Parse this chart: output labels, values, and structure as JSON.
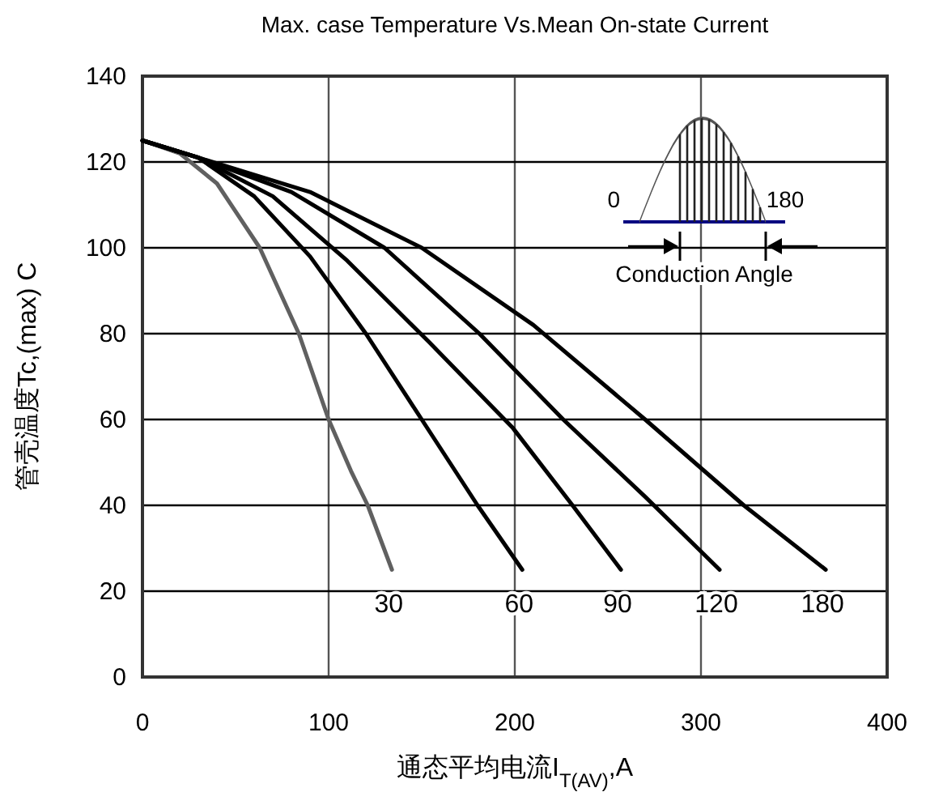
{
  "chart_data": {
    "type": "line",
    "title": "Max. case Temperature Vs.Mean On-state Current",
    "xlabel": "通态平均电流I$_{T(AV)}$,A",
    "ylabel": "管壳温度Tc,(max) C",
    "xlim": [
      0,
      400
    ],
    "ylim": [
      0,
      140
    ],
    "xticks": [
      0,
      100,
      200,
      300,
      400
    ],
    "yticks": [
      0,
      20,
      40,
      60,
      80,
      100,
      120,
      140
    ],
    "grid": true,
    "annotations": [
      "0",
      "180",
      "Conduction Angle"
    ],
    "series": [
      {
        "name": "30",
        "color": "#606060",
        "x": [
          0,
          20,
          40,
          63,
          84,
          100,
          112,
          121,
          134
        ],
        "values": [
          125,
          122,
          115,
          100,
          80,
          60,
          48,
          40,
          25
        ]
      },
      {
        "name": "60",
        "color": "#000000",
        "x": [
          0,
          30,
          60,
          90,
          120,
          150,
          180,
          204
        ],
        "values": [
          125,
          121,
          112,
          98,
          80,
          60,
          40,
          25
        ]
      },
      {
        "name": "90",
        "color": "#000000",
        "x": [
          0,
          30,
          70,
          110,
          154,
          199,
          231,
          257
        ],
        "values": [
          125,
          121,
          112,
          97,
          78,
          58,
          40,
          25
        ]
      },
      {
        "name": "120",
        "color": "#000000",
        "x": [
          0,
          30,
          80,
          130,
          181,
          226,
          270,
          310
        ],
        "values": [
          125,
          121,
          113,
          100,
          80,
          60,
          42,
          25
        ]
      },
      {
        "name": "180",
        "color": "#000000",
        "x": [
          0,
          30,
          90,
          150,
          210,
          270,
          323,
          367
        ],
        "values": [
          125,
          121,
          113,
          100,
          82,
          60,
          40,
          25
        ]
      }
    ]
  }
}
